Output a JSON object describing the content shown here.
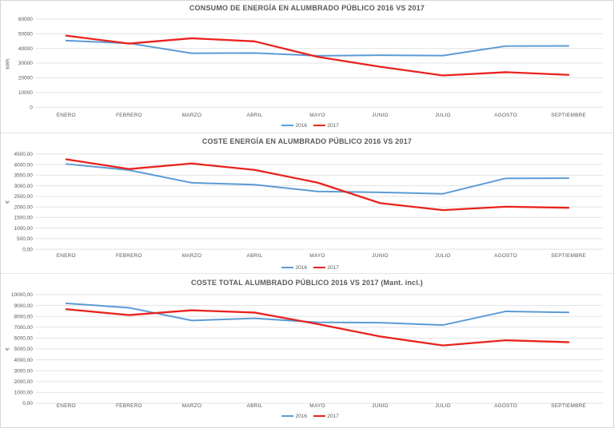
{
  "colors": {
    "series_2016": "#5b9bd5",
    "series_2017": "#e8231e",
    "title": "#595959",
    "axis_text": "#595959",
    "grid": "#e3e3e3"
  },
  "legend": {
    "items": [
      {
        "label": "2016"
      },
      {
        "label": "2017"
      }
    ]
  },
  "chart_data": [
    {
      "type": "line",
      "title": "CONSUMO DE ENERGÍA EN ALUMBRADO PÚBLICO 2016 VS 2017",
      "ylabel": "kWh",
      "xlabel": "",
      "ylim": [
        0,
        60000
      ],
      "ytick_step": 10000,
      "ytick_labels": [
        "60000",
        "50000",
        "40000",
        "30000",
        "20000",
        "10000",
        "0"
      ],
      "grid": "horizontal",
      "legend_position": "bottom",
      "categories": [
        "ENERO",
        "FEBRERO",
        "MARZO",
        "ABRIL",
        "MAYO",
        "JUNIO",
        "JULIO",
        "AGOSTO",
        "SEPTIEMBRE"
      ],
      "series": [
        {
          "name": "2016",
          "values": [
            45300,
            43500,
            36700,
            36900,
            35000,
            35400,
            35100,
            41600,
            41700
          ]
        },
        {
          "name": "2017",
          "values": [
            48700,
            43300,
            46900,
            44800,
            34300,
            27500,
            21600,
            23800,
            22000
          ]
        }
      ]
    },
    {
      "type": "line",
      "title": "COSTE ENERGÍA EN ALUMBRADO PÚBLICO 2016 VS 2017",
      "ylabel": "€",
      "xlabel": "",
      "ylim": [
        0,
        4500
      ],
      "ytick_step": 500,
      "ytick_labels": [
        "4500,00",
        "4000,00",
        "3500,00",
        "3000,00",
        "2500,00",
        "2000,00",
        "1500,00",
        "1000,00",
        "500,00",
        "0,00"
      ],
      "grid": "horizontal",
      "legend_position": "bottom",
      "categories": [
        "ENERO",
        "FEBRERO",
        "MARZO",
        "ABRIL",
        "MAYO",
        "JUNIO",
        "JULIO",
        "AGOSTO",
        "SEPTIEMBRE"
      ],
      "series": [
        {
          "name": "2016",
          "values": [
            4030,
            3740,
            3140,
            3050,
            2730,
            2690,
            2620,
            3350,
            3360
          ]
        },
        {
          "name": "2017",
          "values": [
            4250,
            3790,
            4050,
            3750,
            3150,
            2180,
            1850,
            2010,
            1960
          ]
        }
      ]
    },
    {
      "type": "line",
      "title": "COSTE TOTAL ALUMBRADO PÚBLICO 2016 VS 2017 (Mant. incl.)",
      "ylabel": "€",
      "xlabel": "",
      "ylim": [
        0,
        10000
      ],
      "ytick_step": 1000,
      "ytick_labels": [
        "10000,00",
        "9000,00",
        "8000,00",
        "7000,00",
        "6000,00",
        "5000,00",
        "4000,00",
        "3000,00",
        "2000,00",
        "1000,00",
        "0,00"
      ],
      "grid": "horizontal",
      "legend_position": "bottom",
      "categories": [
        "ENERO",
        "FEBRERO",
        "MARZO",
        "ABRIL",
        "MAYO",
        "JUNIO",
        "JULIO",
        "AGOSTO",
        "SEPTIEMBRE"
      ],
      "series": [
        {
          "name": "2016",
          "values": [
            9200,
            8800,
            7620,
            7820,
            7450,
            7420,
            7200,
            8460,
            8360
          ]
        },
        {
          "name": "2017",
          "values": [
            8660,
            8120,
            8560,
            8350,
            7300,
            6150,
            5320,
            5800,
            5620
          ]
        }
      ]
    }
  ]
}
